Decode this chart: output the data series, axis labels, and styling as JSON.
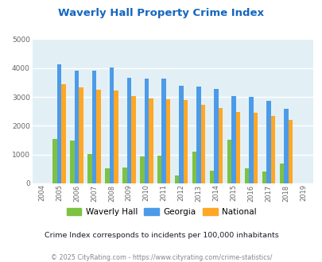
{
  "title": "Waverly Hall Property Crime Index",
  "years": [
    2004,
    2005,
    2006,
    2007,
    2008,
    2009,
    2010,
    2011,
    2012,
    2013,
    2014,
    2015,
    2016,
    2017,
    2018,
    2019
  ],
  "waverly_hall": [
    0,
    1550,
    1500,
    1020,
    510,
    540,
    950,
    960,
    280,
    1100,
    430,
    1510,
    510,
    400,
    680,
    0
  ],
  "georgia": [
    0,
    4130,
    3900,
    3910,
    4020,
    3660,
    3640,
    3640,
    3380,
    3350,
    3280,
    3040,
    3000,
    2870,
    2580,
    0
  ],
  "national": [
    0,
    3450,
    3340,
    3240,
    3230,
    3030,
    2960,
    2930,
    2900,
    2730,
    2620,
    2490,
    2460,
    2350,
    2210,
    0
  ],
  "colors": {
    "waverly_hall": "#7DC242",
    "georgia": "#4C9BE8",
    "national": "#FFA726"
  },
  "ylim": [
    0,
    5000
  ],
  "yticks": [
    0,
    1000,
    2000,
    3000,
    4000,
    5000
  ],
  "bg_color": "#E2F0F5",
  "grid_color": "#FFFFFF",
  "bar_width": 0.25,
  "subtitle": "Crime Index corresponds to incidents per 100,000 inhabitants",
  "footer": "© 2025 CityRating.com - https://www.cityrating.com/crime-statistics/",
  "title_color": "#1565C0",
  "subtitle_color": "#1a1a2e",
  "footer_color": "#888888",
  "legend_labels": [
    "Waverly Hall",
    "Georgia",
    "National"
  ]
}
